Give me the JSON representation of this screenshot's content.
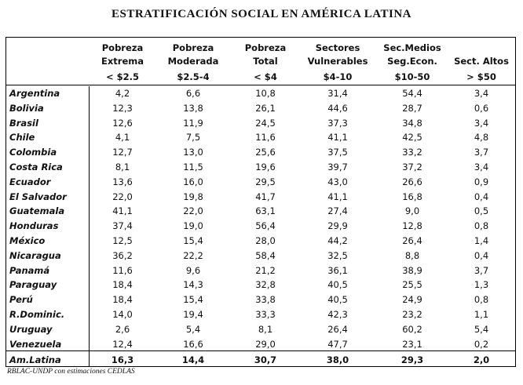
{
  "title": "ESTRATIFICACIÓN SOCIAL EN AMÉRICA LATINA",
  "headers": [
    {
      "l1": "Pobreza",
      "l2": "Extrema",
      "l3": "< $2.5"
    },
    {
      "l1": "Pobreza",
      "l2": "Moderada",
      "l3": "$2.5-4"
    },
    {
      "l1": "Pobreza",
      "l2": "Total",
      "l3": "< $4"
    },
    {
      "l1": "Sectores",
      "l2": "Vulnerables",
      "l3": "$4-10"
    },
    {
      "l1": "Sec.Medios",
      "l2": "Seg.Econ.",
      "l3": "$10-50"
    },
    {
      "l1": "",
      "l2": "Sect. Altos",
      "l3": "> $50"
    }
  ],
  "rows": [
    {
      "c": "Argentina",
      "v": [
        "4,2",
        "6,6",
        "10,8",
        "31,4",
        "54,4",
        "3,4"
      ]
    },
    {
      "c": "Bolivia",
      "v": [
        "12,3",
        "13,8",
        "26,1",
        "44,6",
        "28,7",
        "0,6"
      ]
    },
    {
      "c": "Brasil",
      "v": [
        "12,6",
        "11,9",
        "24,5",
        "37,3",
        "34,8",
        "3,4"
      ]
    },
    {
      "c": "Chile",
      "v": [
        "4,1",
        "7,5",
        "11,6",
        "41,1",
        "42,5",
        "4,8"
      ]
    },
    {
      "c": "Colombia",
      "v": [
        "12,7",
        "13,0",
        "25,6",
        "37,5",
        "33,2",
        "3,7"
      ]
    },
    {
      "c": "Costa Rica",
      "v": [
        "8,1",
        "11,5",
        "19,6",
        "39,7",
        "37,2",
        "3,4"
      ]
    },
    {
      "c": "Ecuador",
      "v": [
        "13,6",
        "16,0",
        "29,5",
        "43,0",
        "26,6",
        "0,9"
      ]
    },
    {
      "c": "El Salvador",
      "v": [
        "22,0",
        "19,8",
        "41,7",
        "41,1",
        "16,8",
        "0,4"
      ]
    },
    {
      "c": "Guatemala",
      "v": [
        "41,1",
        "22,0",
        "63,1",
        "27,4",
        "9,0",
        "0,5"
      ]
    },
    {
      "c": "Honduras",
      "v": [
        "37,4",
        "19,0",
        "56,4",
        "29,9",
        "12,8",
        "0,8"
      ]
    },
    {
      "c": "México",
      "v": [
        "12,5",
        "15,4",
        "28,0",
        "44,2",
        "26,4",
        "1,4"
      ]
    },
    {
      "c": "Nicaragua",
      "v": [
        "36,2",
        "22,2",
        "58,4",
        "32,5",
        "8,8",
        "0,4"
      ]
    },
    {
      "c": "Panamá",
      "v": [
        "11,6",
        "9,6",
        "21,2",
        "36,1",
        "38,9",
        "3,7"
      ]
    },
    {
      "c": "Paraguay",
      "v": [
        "18,4",
        "14,3",
        "32,8",
        "40,5",
        "25,5",
        "1,3"
      ]
    },
    {
      "c": "Perú",
      "v": [
        "18,4",
        "15,4",
        "33,8",
        "40,5",
        "24,9",
        "0,8"
      ]
    },
    {
      "c": "R.Dominic.",
      "v": [
        "14,0",
        "19,4",
        "33,3",
        "42,3",
        "23,2",
        "1,1"
      ]
    },
    {
      "c": "Uruguay",
      "v": [
        "2,6",
        "5,4",
        "8,1",
        "26,4",
        "60,2",
        "5,4"
      ]
    },
    {
      "c": "Venezuela",
      "v": [
        "12,4",
        "16,6",
        "29,0",
        "47,7",
        "23,1",
        "0,2"
      ]
    },
    {
      "c": "Am.Latina",
      "v": [
        "16,3",
        "14,4",
        "30,7",
        "38,0",
        "29,3",
        "2,0"
      ]
    }
  ],
  "source": "RBLAC-UNDP con estimaciones CEDLAS"
}
